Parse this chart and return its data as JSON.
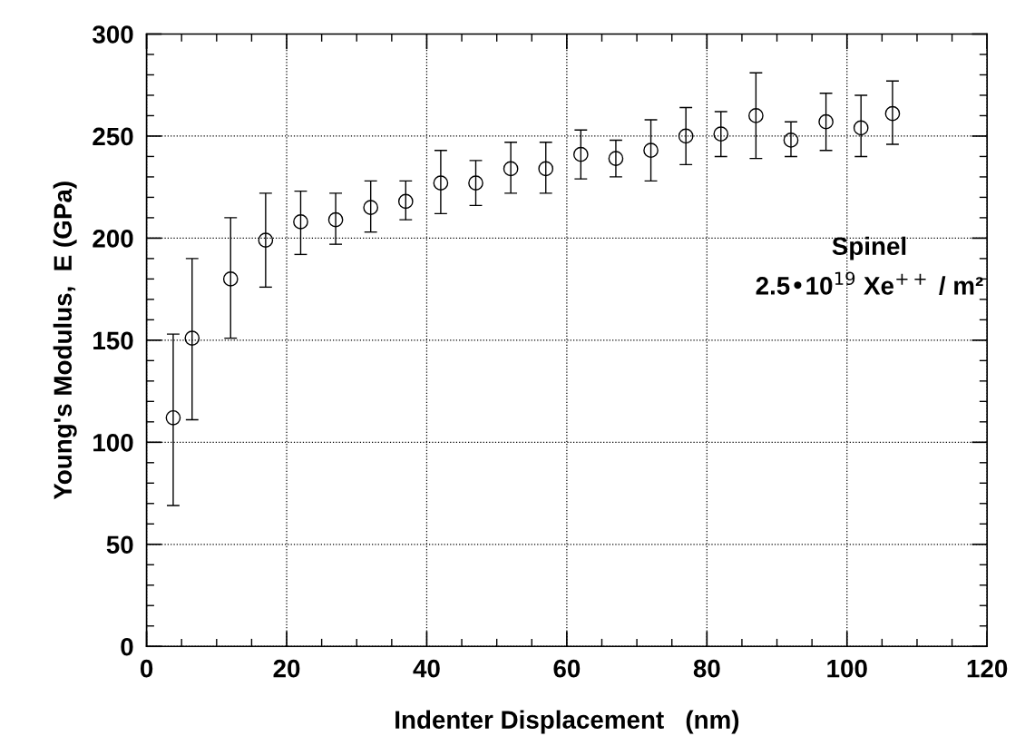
{
  "chart_data": {
    "type": "scatter",
    "xlabel": "Indenter Displacement   (nm)",
    "ylabel": "Young's Modulus,  E (GPa)",
    "x": [
      3.8,
      6.5,
      12,
      17,
      22,
      27,
      32,
      37,
      42,
      47,
      52,
      57,
      62,
      67,
      72,
      77,
      82,
      87,
      92,
      97,
      102,
      106.5
    ],
    "values": [
      112,
      151,
      180,
      199,
      208,
      209,
      215,
      218,
      227,
      227,
      234,
      234,
      241,
      239,
      243,
      250,
      251,
      260,
      248,
      257,
      254,
      261
    ],
    "errors": [
      [
        69,
        153
      ],
      [
        111,
        190
      ],
      [
        151,
        210
      ],
      [
        176,
        222
      ],
      [
        192,
        223
      ],
      [
        197,
        222
      ],
      [
        203,
        228
      ],
      [
        209,
        228
      ],
      [
        212,
        243
      ],
      [
        216,
        238
      ],
      [
        222,
        247
      ],
      [
        222,
        247
      ],
      [
        229,
        253
      ],
      [
        230,
        248
      ],
      [
        228,
        258
      ],
      [
        236,
        264
      ],
      [
        240,
        262
      ],
      [
        239,
        281
      ],
      [
        240,
        257
      ],
      [
        243,
        271
      ],
      [
        240,
        270
      ],
      [
        246,
        277
      ]
    ],
    "color": "#000000",
    "marker": "circle",
    "xlim": [
      0,
      120
    ],
    "xticks": [
      0,
      20,
      40,
      60,
      80,
      100,
      120
    ],
    "ylim": [
      0,
      300
    ],
    "yticks": [
      0,
      50,
      100,
      150,
      200,
      250,
      300
    ],
    "grid": true,
    "legend": false,
    "annotations": [
      "Spinel",
      "2.5•10$^{19}$ Xe$^{++}$ / m²"
    ]
  }
}
